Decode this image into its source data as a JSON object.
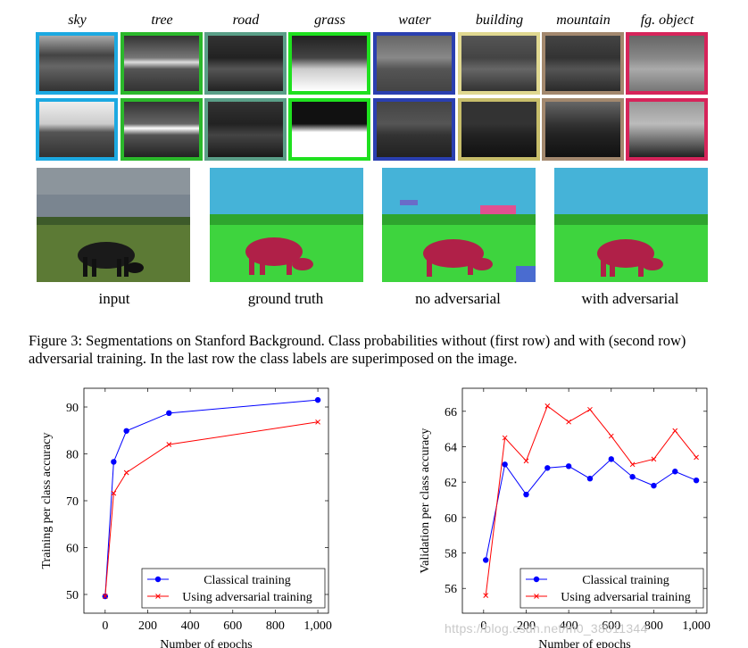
{
  "figure": {
    "class_labels": [
      {
        "label": "sky",
        "color": "#1ca9e1"
      },
      {
        "label": "tree",
        "color": "#2bb82b"
      },
      {
        "label": "road",
        "color": "#5a9f88"
      },
      {
        "label": "grass",
        "color": "#1fe01f"
      },
      {
        "label": "water",
        "color": "#2a3fb0"
      },
      {
        "label": "building",
        "color": "#c7bd6a"
      },
      {
        "label": "mountain",
        "color": "#a3886e"
      },
      {
        "label": "fg. object",
        "color": "#d6245a"
      }
    ],
    "image_captions": [
      "input",
      "ground truth",
      "no adversarial",
      "with adversarial"
    ],
    "caption": "Figure 3: Segmentations on Stanford Background. Class probabilities without (first row) and with (second row) adversarial training. In the last row the class labels are superimposed on the image."
  },
  "chart_data": [
    {
      "type": "line",
      "xlabel": "Number of epochs",
      "ylabel": "Training per class accuracy",
      "xlim": [
        -100,
        1050
      ],
      "ylim": [
        46,
        94
      ],
      "xticks": [
        0,
        200,
        400,
        600,
        800,
        1000
      ],
      "xtick_labels": [
        "0",
        "200",
        "400",
        "600",
        "800",
        "1,000"
      ],
      "yticks": [
        50,
        60,
        70,
        80,
        90
      ],
      "legend_position": "bottom-right",
      "series": [
        {
          "name": "Classical training",
          "color": "#0000ff",
          "marker": "circle",
          "x": [
            0,
            40,
            100,
            300,
            1000
          ],
          "y": [
            49.6,
            78.3,
            84.9,
            88.7,
            91.5
          ]
        },
        {
          "name": "Using adversarial training",
          "color": "#ff0000",
          "marker": "x",
          "x": [
            0,
            40,
            100,
            300,
            1000
          ],
          "y": [
            49.6,
            71.6,
            76.0,
            82.0,
            86.8
          ]
        }
      ]
    },
    {
      "type": "line",
      "xlabel": "Number of epochs",
      "ylabel": "Validation per class accuracy",
      "xlim": [
        -100,
        1050
      ],
      "ylim": [
        54.6,
        67.3
      ],
      "xticks": [
        0,
        200,
        400,
        600,
        800,
        1000
      ],
      "xtick_labels": [
        "0",
        "200",
        "400",
        "600",
        "800",
        "1,000"
      ],
      "yticks": [
        56,
        58,
        60,
        62,
        64,
        66
      ],
      "legend_position": "bottom-right",
      "series": [
        {
          "name": "Classical training",
          "color": "#0000ff",
          "marker": "circle",
          "x": [
            10,
            100,
            200,
            300,
            400,
            500,
            600,
            700,
            800,
            900,
            1000
          ],
          "y": [
            57.6,
            63.0,
            61.3,
            62.8,
            62.9,
            62.2,
            63.3,
            62.3,
            61.8,
            62.6,
            62.1
          ]
        },
        {
          "name": "Using adversarial training",
          "color": "#ff0000",
          "marker": "x",
          "x": [
            10,
            100,
            200,
            300,
            400,
            500,
            600,
            700,
            800,
            900,
            1000
          ],
          "y": [
            55.6,
            64.5,
            63.2,
            66.3,
            65.4,
            66.1,
            64.6,
            63.0,
            63.3,
            64.9,
            63.4
          ]
        }
      ]
    }
  ],
  "watermark": "https://blog.csdn.net/m0_38011344"
}
